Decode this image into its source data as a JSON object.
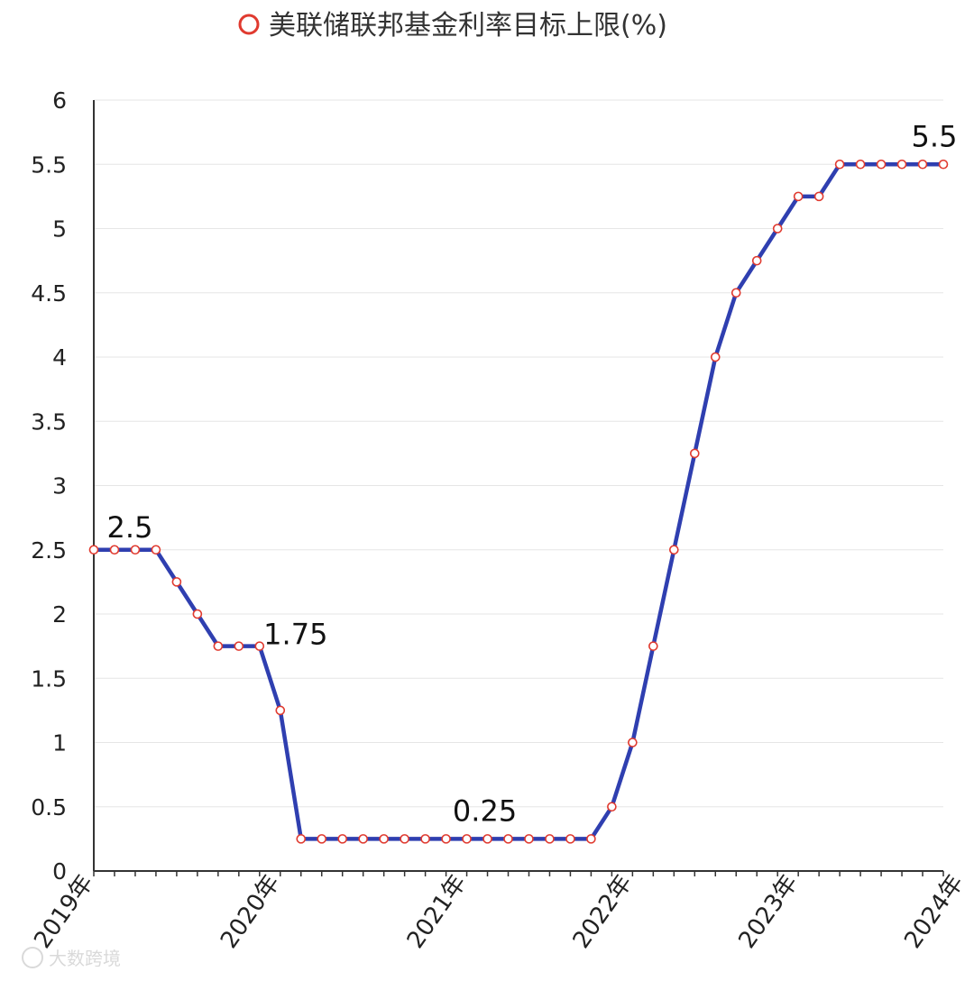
{
  "chart_data": {
    "type": "line",
    "legend": "top",
    "grid": true,
    "ylim": [
      0,
      6
    ],
    "yticks": [
      0,
      0.5,
      1,
      1.5,
      2,
      2.5,
      3,
      3.5,
      4,
      4.5,
      5,
      5.5,
      6
    ],
    "ytick_labels": [
      "0",
      "0.5",
      "1",
      "1.5",
      "2",
      "2.5",
      "3",
      "3.5",
      "4",
      "4.5",
      "5",
      "5.5",
      "6"
    ],
    "x_tick_labels": [
      "2019年",
      "2020年",
      "2021年",
      "2022年",
      "2023年",
      "2024年"
    ],
    "x_tick_indices": [
      0,
      9,
      18,
      26,
      34,
      42
    ],
    "series": [
      {
        "name": "美联储联邦基金利率目标上限(%)",
        "color": "#2f3fb0",
        "marker_edge_color": "#e03a2f",
        "values": [
          2.5,
          2.5,
          2.5,
          2.5,
          2.25,
          2.0,
          1.75,
          1.75,
          1.75,
          1.25,
          0.25,
          0.25,
          0.25,
          0.25,
          0.25,
          0.25,
          0.25,
          0.25,
          0.25,
          0.25,
          0.25,
          0.25,
          0.25,
          0.25,
          0.25,
          0.5,
          1.0,
          1.75,
          2.5,
          3.25,
          4.0,
          4.5,
          4.75,
          5.0,
          5.25,
          5.25,
          5.5,
          5.5,
          5.5,
          5.5,
          5.5,
          5.5
        ]
      }
    ],
    "annotations": [
      {
        "index": 0,
        "text": "2.5"
      },
      {
        "index": 8,
        "text": "1.75"
      },
      {
        "index": 18,
        "text": "0.25"
      },
      {
        "index": 41,
        "text": "5.5"
      }
    ]
  },
  "watermark": {
    "text": "大数跨境"
  }
}
